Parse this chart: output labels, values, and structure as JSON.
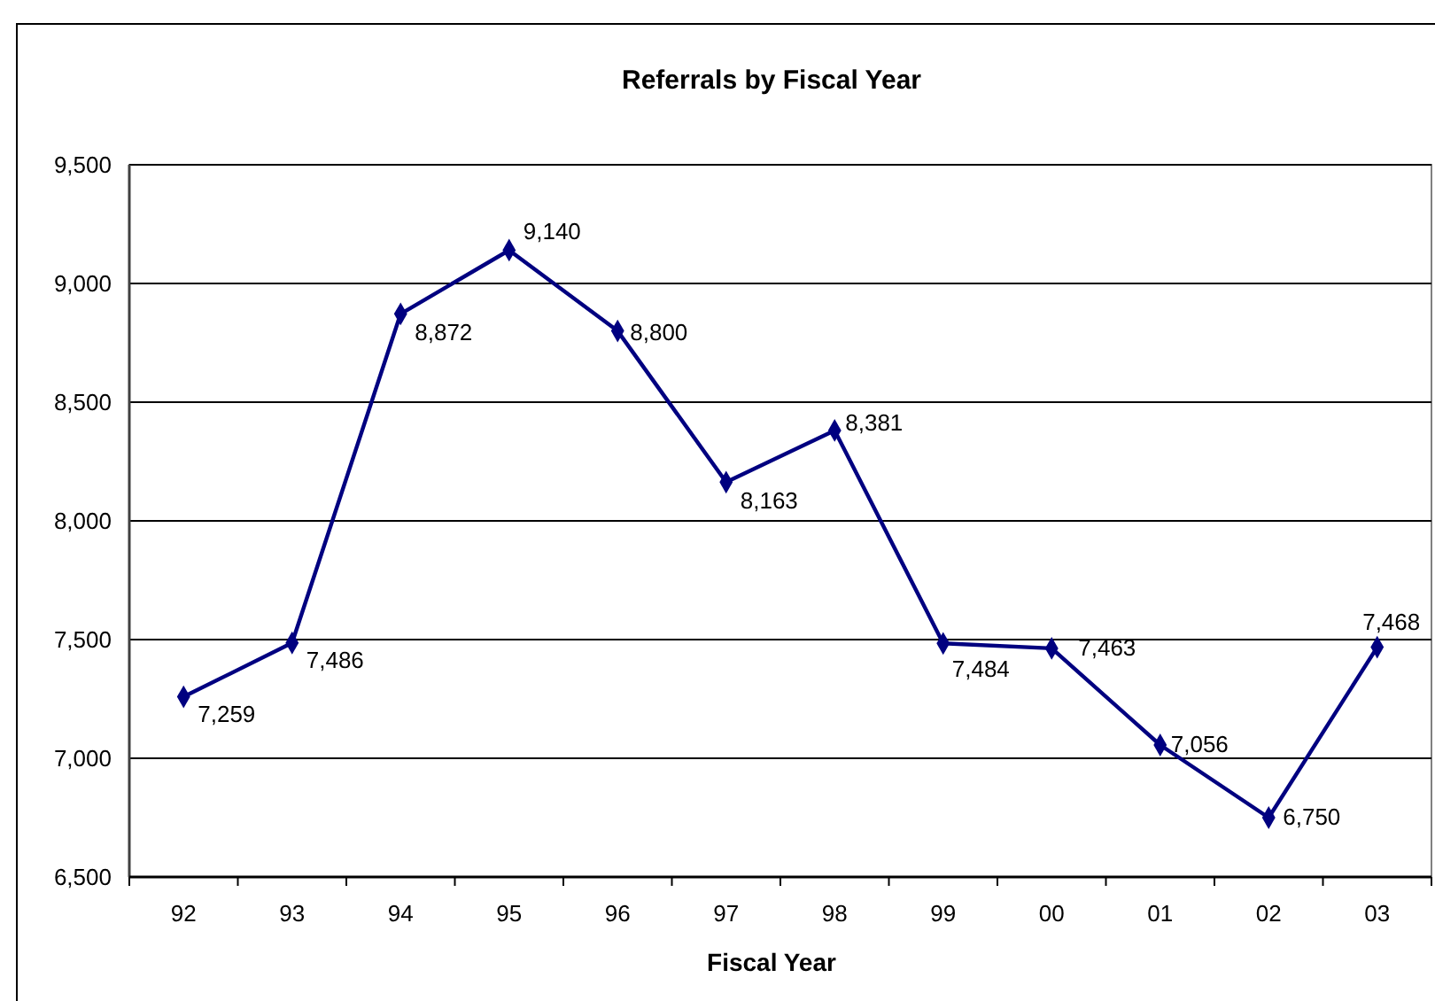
{
  "chart_data": {
    "type": "line",
    "title": "Referrals by Fiscal Year",
    "xlabel": "Fiscal Year",
    "categories": [
      "92",
      "93",
      "94",
      "95",
      "96",
      "97",
      "98",
      "99",
      "00",
      "01",
      "02",
      "03"
    ],
    "series": [
      {
        "color": "#000080",
        "values": [
          7259,
          7486,
          8872,
          9140,
          8800,
          8163,
          8381,
          7484,
          7463,
          7056,
          6750,
          7468
        ],
        "value_labels": [
          "7,259",
          "7,486",
          "8,872",
          "9,140",
          "8,800",
          "8,163",
          "8,381",
          "7,484",
          "7,463",
          "7,056",
          "6,750",
          "7,468"
        ]
      }
    ],
    "ylim": [
      6500,
      9500
    ],
    "yticks": [
      {
        "value": 6500,
        "label": "6,500"
      },
      {
        "value": 7000,
        "label": "7,000"
      },
      {
        "value": 7500,
        "label": "7,500"
      },
      {
        "value": 8000,
        "label": "8,000"
      },
      {
        "value": 8500,
        "label": "8,500"
      },
      {
        "value": 9000,
        "label": "9,000"
      },
      {
        "value": 9500,
        "label": "9,500"
      }
    ],
    "grid": "y",
    "marker": "diamond",
    "line_style": "solid"
  }
}
